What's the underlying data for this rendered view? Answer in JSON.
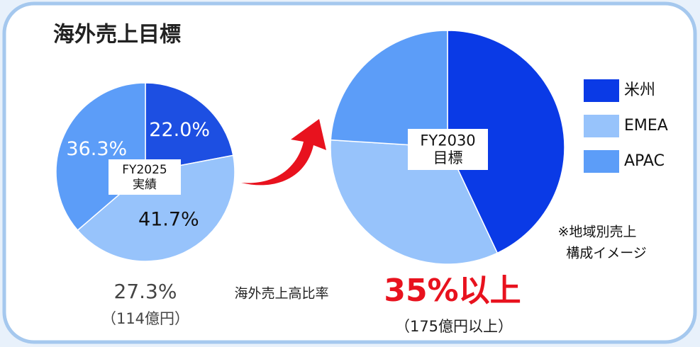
{
  "title": "海外売上目標",
  "chart_data": [
    {
      "type": "pie",
      "categories": [
        "米州",
        "EMEA",
        "APAC"
      ],
      "values": [
        22.0,
        41.7,
        36.3
      ],
      "value_labels": [
        "22.0%",
        "41.7%",
        "36.3%"
      ],
      "colors": [
        "#1d4fe2",
        "#97c3fb",
        "#5c9df8"
      ],
      "center_label": [
        "FY2025",
        "実績"
      ]
    },
    {
      "type": "pie",
      "categories": [
        "米州",
        "EMEA",
        "APAC"
      ],
      "values": [
        43,
        33,
        24
      ],
      "colors": [
        "#0a3ae6",
        "#97c3fb",
        "#5c9df8"
      ],
      "center_label": [
        "FY2030",
        "目標"
      ],
      "legend": "right",
      "note": [
        "※地域別売上",
        "構成イメージ"
      ]
    }
  ],
  "overseas_ratio": {
    "label": "海外売上高比率",
    "current": "27.3%",
    "current_amount": "（114億円）",
    "target": "35%以上",
    "target_amount": "（175億円以上）"
  }
}
